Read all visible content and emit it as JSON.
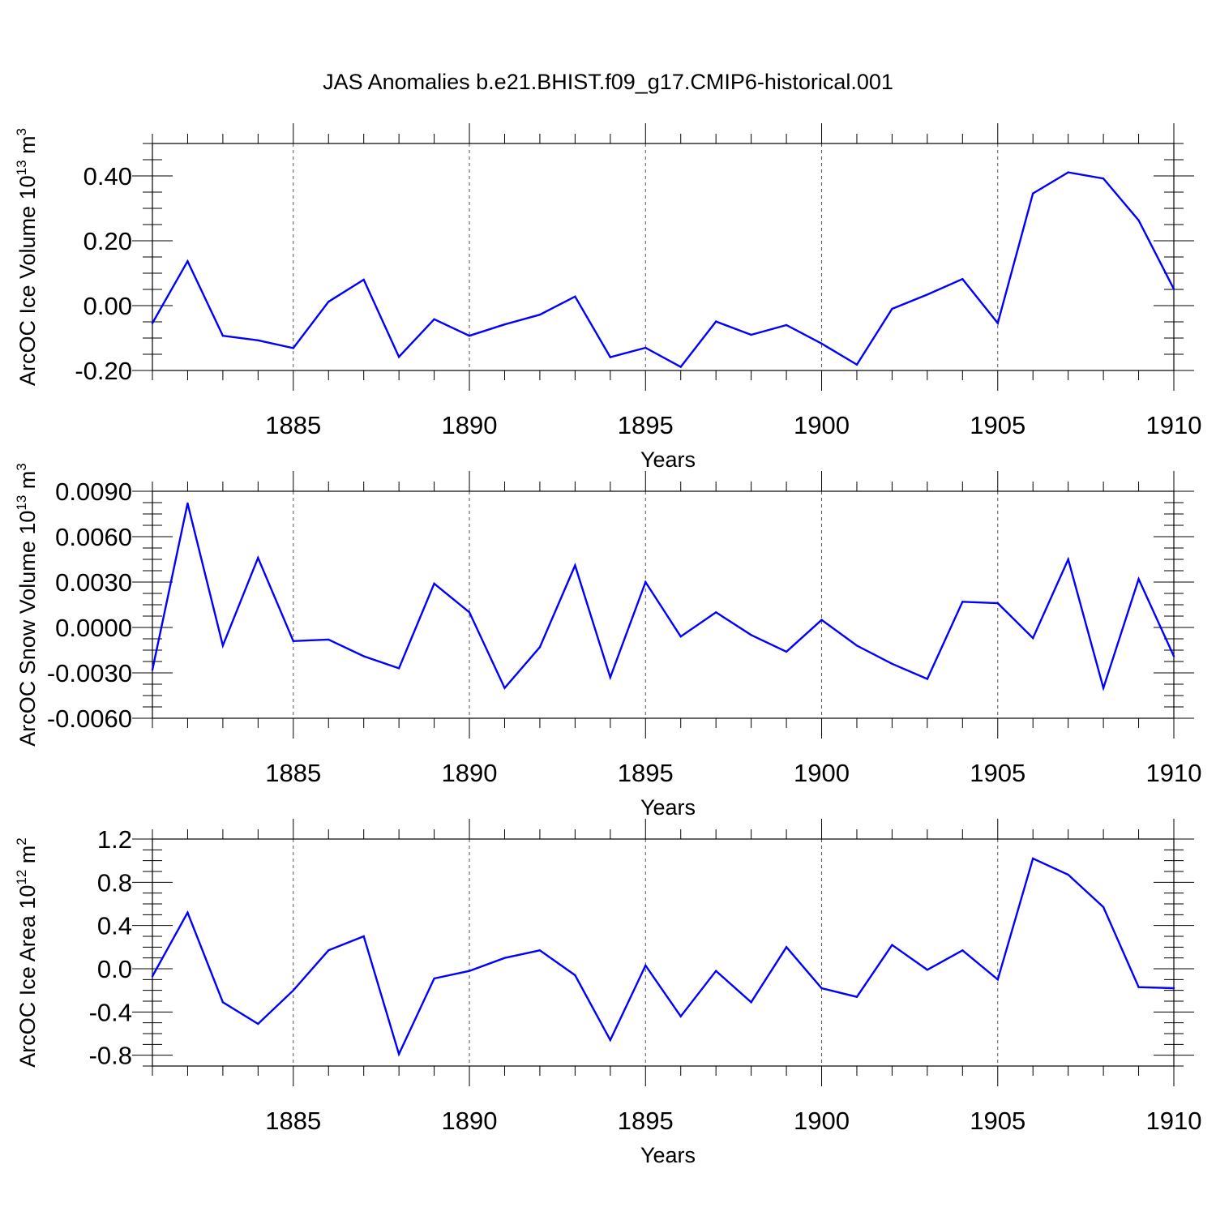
{
  "figure": {
    "title": "JAS Anomalies b.e21.BHIST.f09_g17.CMIP6-historical.001"
  },
  "chart_data": [
    {
      "type": "line",
      "ylabel": "ArcOC Ice Volume 10",
      "ylabel_sup": "13",
      "ylabel_unit": "m",
      "ylabel_unit_sup": "3",
      "xlabel": "Years",
      "xlim": [
        1881,
        1910
      ],
      "ylim": [
        -0.2,
        0.5
      ],
      "yticks": [
        -0.2,
        0.0,
        0.2,
        0.4
      ],
      "ytick_labels": [
        "-0.20",
        "0.00",
        "0.20",
        "0.40"
      ],
      "yminor": 0.05,
      "xticks": [
        1885,
        1890,
        1895,
        1900,
        1905,
        1910
      ],
      "xtick_labels": [
        "1885",
        "1890",
        "1895",
        "1900",
        "1905",
        "1910"
      ],
      "grid": "vertical dashed at major x ticks",
      "line_color": "#0000ff",
      "x": [
        1881,
        1882,
        1883,
        1884,
        1885,
        1886,
        1887,
        1888,
        1889,
        1890,
        1891,
        1892,
        1893,
        1894,
        1895,
        1896,
        1897,
        1898,
        1899,
        1900,
        1901,
        1902,
        1903,
        1904,
        1905,
        1906,
        1907,
        1908,
        1909,
        1910
      ],
      "values": [
        -0.054,
        0.137,
        -0.093,
        -0.107,
        -0.131,
        0.012,
        0.08,
        -0.158,
        -0.042,
        -0.093,
        -0.058,
        -0.028,
        0.028,
        -0.159,
        -0.13,
        -0.189,
        -0.049,
        -0.09,
        -0.06,
        -0.117,
        -0.182,
        -0.01,
        0.034,
        0.082,
        -0.054,
        0.346,
        0.411,
        0.392,
        0.263,
        0.051
      ]
    },
    {
      "type": "line",
      "ylabel": "ArcOC Snow Volume 10",
      "ylabel_sup": "13",
      "ylabel_unit": "m",
      "ylabel_unit_sup": "3",
      "xlabel": "Years",
      "xlim": [
        1881,
        1910
      ],
      "ylim": [
        -0.006,
        0.009
      ],
      "yticks": [
        -0.006,
        -0.003,
        0.0,
        0.003,
        0.006,
        0.009
      ],
      "ytick_labels": [
        "-0.0060",
        "-0.0030",
        "0.0000",
        "0.0030",
        "0.0060",
        "0.0090"
      ],
      "yminor": 0.00075,
      "xticks": [
        1885,
        1890,
        1895,
        1900,
        1905,
        1910
      ],
      "xtick_labels": [
        "1885",
        "1890",
        "1895",
        "1900",
        "1905",
        "1910"
      ],
      "grid": "vertical dashed at major x ticks",
      "line_color": "#0000ff",
      "x": [
        1881,
        1882,
        1883,
        1884,
        1885,
        1886,
        1887,
        1888,
        1889,
        1890,
        1891,
        1892,
        1893,
        1894,
        1895,
        1896,
        1897,
        1898,
        1899,
        1900,
        1901,
        1902,
        1903,
        1904,
        1905,
        1906,
        1907,
        1908,
        1909,
        1910
      ],
      "values": [
        -0.0028,
        0.0082,
        -0.0012,
        0.0046,
        -0.0009,
        -0.0008,
        -0.0019,
        -0.0027,
        0.0029,
        0.001,
        -0.004,
        -0.0013,
        0.0041,
        -0.0033,
        0.003,
        -0.0006,
        0.001,
        -0.0005,
        -0.0016,
        0.0005,
        -0.0012,
        -0.0024,
        -0.0034,
        0.0017,
        0.0016,
        -0.0007,
        0.0045,
        -0.004,
        0.0032,
        -0.0019
      ]
    },
    {
      "type": "line",
      "ylabel": "ArcOC Ice Area 10",
      "ylabel_sup": "12",
      "ylabel_unit": "m",
      "ylabel_unit_sup": "2",
      "xlabel": "Years",
      "xlim": [
        1881,
        1910
      ],
      "ylim": [
        -0.9,
        1.2
      ],
      "yticks": [
        -0.8,
        -0.4,
        0.0,
        0.4,
        0.8,
        1.2
      ],
      "ytick_labels": [
        "-0.8",
        "-0.4",
        "0.0",
        "0.4",
        "0.8",
        "1.2"
      ],
      "yminor": 0.1,
      "xticks": [
        1885,
        1890,
        1895,
        1900,
        1905,
        1910
      ],
      "xtick_labels": [
        "1885",
        "1890",
        "1895",
        "1900",
        "1905",
        "1910"
      ],
      "grid": "vertical dashed at major x ticks",
      "line_color": "#0000ff",
      "x": [
        1881,
        1882,
        1883,
        1884,
        1885,
        1886,
        1887,
        1888,
        1889,
        1890,
        1891,
        1892,
        1893,
        1894,
        1895,
        1896,
        1897,
        1898,
        1899,
        1900,
        1901,
        1902,
        1903,
        1904,
        1905,
        1906,
        1907,
        1908,
        1909,
        1910
      ],
      "values": [
        -0.07,
        0.52,
        -0.31,
        -0.51,
        -0.2,
        0.17,
        0.3,
        -0.79,
        -0.09,
        -0.02,
        0.1,
        0.17,
        -0.06,
        -0.66,
        0.03,
        -0.44,
        -0.02,
        -0.31,
        0.2,
        -0.18,
        -0.26,
        0.22,
        -0.01,
        0.17,
        -0.1,
        1.02,
        0.87,
        0.57,
        -0.17,
        -0.18
      ]
    }
  ]
}
